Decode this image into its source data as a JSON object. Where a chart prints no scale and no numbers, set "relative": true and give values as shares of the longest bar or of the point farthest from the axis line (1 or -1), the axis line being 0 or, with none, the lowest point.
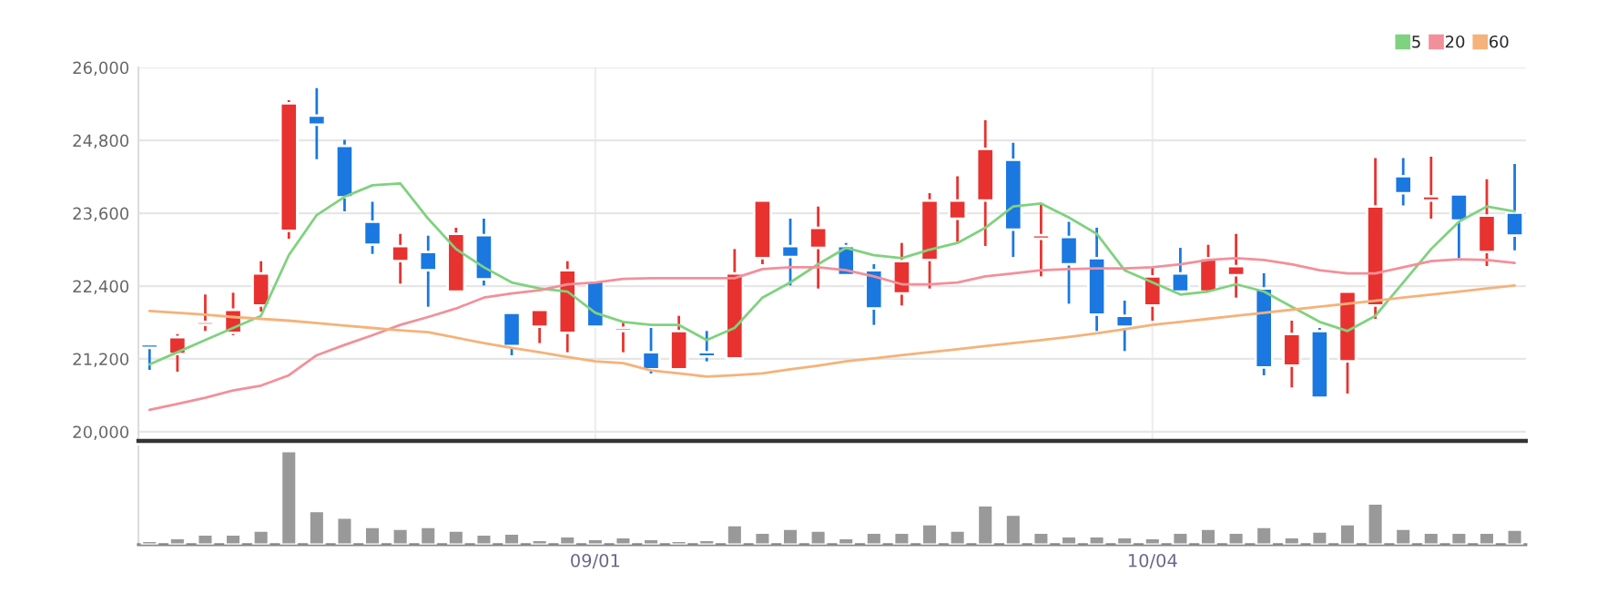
{
  "chart_data": [
    {
      "type": "candlestick",
      "categories": [
        null,
        null,
        null,
        null,
        null,
        null,
        null,
        null,
        null,
        null,
        null,
        null,
        null,
        null,
        null,
        null,
        null,
        null,
        null,
        null,
        null,
        null,
        null,
        null,
        null,
        null,
        null,
        null,
        null,
        null,
        null,
        null,
        null,
        null,
        null,
        null,
        null,
        null,
        null,
        null,
        null,
        null,
        null,
        null,
        null,
        null,
        null,
        null,
        null,
        null
      ],
      "ohlc": [
        [
          21440,
          21440,
          21020,
          21380
        ],
        [
          21280,
          21610,
          20990,
          21560
        ],
        [
          21760,
          22260,
          21660,
          21810
        ],
        [
          21630,
          22290,
          21590,
          22010
        ],
        [
          22080,
          22810,
          21980,
          22610
        ],
        [
          23310,
          25460,
          23180,
          25410
        ],
        [
          25210,
          25660,
          24490,
          25060
        ],
        [
          24710,
          24810,
          23630,
          23860
        ],
        [
          23460,
          23790,
          22930,
          23080
        ],
        [
          22810,
          23260,
          22440,
          23060
        ],
        [
          22960,
          23230,
          22060,
          22660
        ],
        [
          22310,
          23360,
          22310,
          23260
        ],
        [
          23240,
          23510,
          22410,
          22510
        ],
        [
          21960,
          21960,
          21260,
          21410
        ],
        [
          21730,
          22010,
          21460,
          22010
        ],
        [
          21630,
          22810,
          21310,
          22660
        ],
        [
          22480,
          22480,
          21730,
          21730
        ],
        [
          21660,
          21810,
          21310,
          21710
        ],
        [
          21310,
          21710,
          20960,
          21030
        ],
        [
          21030,
          21910,
          21030,
          21660
        ],
        [
          21310,
          21660,
          21160,
          21240
        ],
        [
          21210,
          23010,
          21210,
          22610
        ],
        [
          22860,
          23810,
          22760,
          23810
        ],
        [
          23060,
          23510,
          22410,
          22880
        ],
        [
          23030,
          23710,
          22360,
          23360
        ],
        [
          23060,
          23110,
          22580,
          22580
        ],
        [
          22660,
          22760,
          21760,
          22030
        ],
        [
          22280,
          23110,
          22080,
          22810
        ],
        [
          22830,
          23930,
          22360,
          23810
        ],
        [
          23510,
          24210,
          23130,
          23810
        ],
        [
          23810,
          25130,
          23060,
          24660
        ],
        [
          24480,
          24760,
          22880,
          23330
        ],
        [
          23180,
          23760,
          22560,
          23240
        ],
        [
          23210,
          23460,
          22110,
          22760
        ],
        [
          22860,
          23360,
          21660,
          21930
        ],
        [
          21910,
          22160,
          21330,
          21730
        ],
        [
          22080,
          22710,
          21830,
          22560
        ],
        [
          22610,
          23030,
          22310,
          22310
        ],
        [
          22310,
          23080,
          22310,
          22860
        ],
        [
          22580,
          23260,
          22210,
          22730
        ],
        [
          22360,
          22610,
          20930,
          21060
        ],
        [
          21090,
          21830,
          20730,
          21610
        ],
        [
          21660,
          21710,
          20560,
          20560
        ],
        [
          21160,
          22310,
          20630,
          22310
        ],
        [
          22080,
          24510,
          21860,
          23710
        ],
        [
          24210,
          24510,
          23730,
          23930
        ],
        [
          23810,
          24530,
          23510,
          23880
        ],
        [
          23910,
          23910,
          22860,
          23480
        ],
        [
          22960,
          24160,
          22730,
          23560
        ],
        [
          23610,
          24410,
          22990,
          23230
        ]
      ],
      "colors": [
        "#1a78e0",
        "#e8322f",
        "#e8322f",
        "#e8322f",
        "#e8322f",
        "#e8322f",
        "#1a78e0",
        "#1a78e0",
        "#1a78e0",
        "#e8322f",
        "#1a78e0",
        "#e8322f",
        "#1a78e0",
        "#1a78e0",
        "#e8322f",
        "#e8322f",
        "#1a78e0",
        "#e8322f",
        "#1a78e0",
        "#e8322f",
        "#1a78e0",
        "#e8322f",
        "#e8322f",
        "#1a78e0",
        "#e8322f",
        "#1a78e0",
        "#1a78e0",
        "#e8322f",
        "#e8322f",
        "#e8322f",
        "#e8322f",
        "#1a78e0",
        "#e8322f",
        "#1a78e0",
        "#1a78e0",
        "#1a78e0",
        "#e8322f",
        "#1a78e0",
        "#e8322f",
        "#e8322f",
        "#1a78e0",
        "#e8322f",
        "#1a78e0",
        "#e8322f",
        "#e8322f",
        "#1a78e0",
        "#e8322f",
        "#1a78e0",
        "#e8322f",
        "#1a78e0"
      ],
      "series": [
        {
          "name": "5",
          "type": "line",
          "color": "#7fd27f",
          "values": [
            21110,
            21310,
            21510,
            21710,
            21910,
            22910,
            23570,
            23870,
            24060,
            24090,
            23510,
            23010,
            22710,
            22460,
            22360,
            22310,
            21960,
            21810,
            21760,
            21760,
            21510,
            21710,
            22210,
            22460,
            22760,
            23030,
            22910,
            22860,
            23000,
            23110,
            23360,
            23710,
            23760,
            23530,
            23260,
            22660,
            22460,
            22260,
            22310,
            22430,
            22310,
            22060,
            21810,
            21660,
            21910,
            22460,
            23010,
            23460,
            23710,
            23630
          ]
        },
        {
          "name": "20",
          "type": "line",
          "color": "#f2909a",
          "values": [
            20360,
            20460,
            20560,
            20680,
            20760,
            20930,
            21260,
            21430,
            21590,
            21760,
            21890,
            22030,
            22210,
            22280,
            22330,
            22430,
            22460,
            22520,
            22530,
            22530,
            22530,
            22530,
            22680,
            22710,
            22710,
            22660,
            22560,
            22430,
            22430,
            22460,
            22560,
            22610,
            22660,
            22680,
            22690,
            22690,
            22710,
            22760,
            22830,
            22860,
            22830,
            22760,
            22660,
            22610,
            22610,
            22710,
            22810,
            22840,
            22830,
            22780
          ]
        },
        {
          "name": "60",
          "type": "line",
          "color": "#f5b27a",
          "values": [
            21990,
            21960,
            21930,
            21890,
            21860,
            21830,
            21790,
            21750,
            21710,
            21670,
            21640,
            21550,
            21460,
            21380,
            21310,
            21230,
            21160,
            21130,
            21010,
            20960,
            20910,
            20930,
            20960,
            21030,
            21090,
            21160,
            21210,
            21260,
            21310,
            21360,
            21410,
            21460,
            21510,
            21560,
            21620,
            21690,
            21760,
            21810,
            21860,
            21910,
            21960,
            22010,
            22060,
            22110,
            22160,
            22210,
            22260,
            22310,
            22360,
            22410
          ]
        }
      ],
      "ylim": [
        19850,
        26000
      ],
      "yticks": [
        {
          "value": 20000,
          "label": "20,000"
        },
        {
          "value": 21200,
          "label": "21,200"
        },
        {
          "value": 22400,
          "label": "22,400"
        },
        {
          "value": 23600,
          "label": "23,600"
        },
        {
          "value": 24800,
          "label": "24,800"
        },
        {
          "value": 26000,
          "label": "26,000"
        }
      ],
      "tick_labels": "y",
      "grid": true,
      "legend": "top right"
    },
    {
      "type": "bar",
      "relative": true,
      "categories": [
        null,
        null,
        null,
        null,
        null,
        null,
        null,
        null,
        null,
        null,
        null,
        null,
        null,
        null,
        null,
        null,
        "09/01",
        null,
        null,
        null,
        null,
        null,
        null,
        null,
        null,
        null,
        null,
        null,
        null,
        null,
        null,
        null,
        null,
        null,
        null,
        null,
        "10/04",
        null,
        null,
        null,
        null,
        null,
        null,
        null,
        null,
        null,
        null,
        null,
        null,
        null
      ],
      "color": "#999999",
      "values": [
        0.04,
        0.07,
        0.11,
        0.11,
        0.15,
        1,
        0.36,
        0.29,
        0.19,
        0.17,
        0.19,
        0.15,
        0.11,
        0.12,
        0.05,
        0.09,
        0.06,
        0.08,
        0.06,
        0.04,
        0.05,
        0.21,
        0.13,
        0.17,
        0.15,
        0.07,
        0.13,
        0.13,
        0.22,
        0.15,
        0.42,
        0.32,
        0.13,
        0.09,
        0.09,
        0.08,
        0.07,
        0.13,
        0.17,
        0.13,
        0.19,
        0.08,
        0.14,
        0.22,
        0.44,
        0.17,
        0.13,
        0.13,
        0.13,
        0.16
      ]
    }
  ]
}
